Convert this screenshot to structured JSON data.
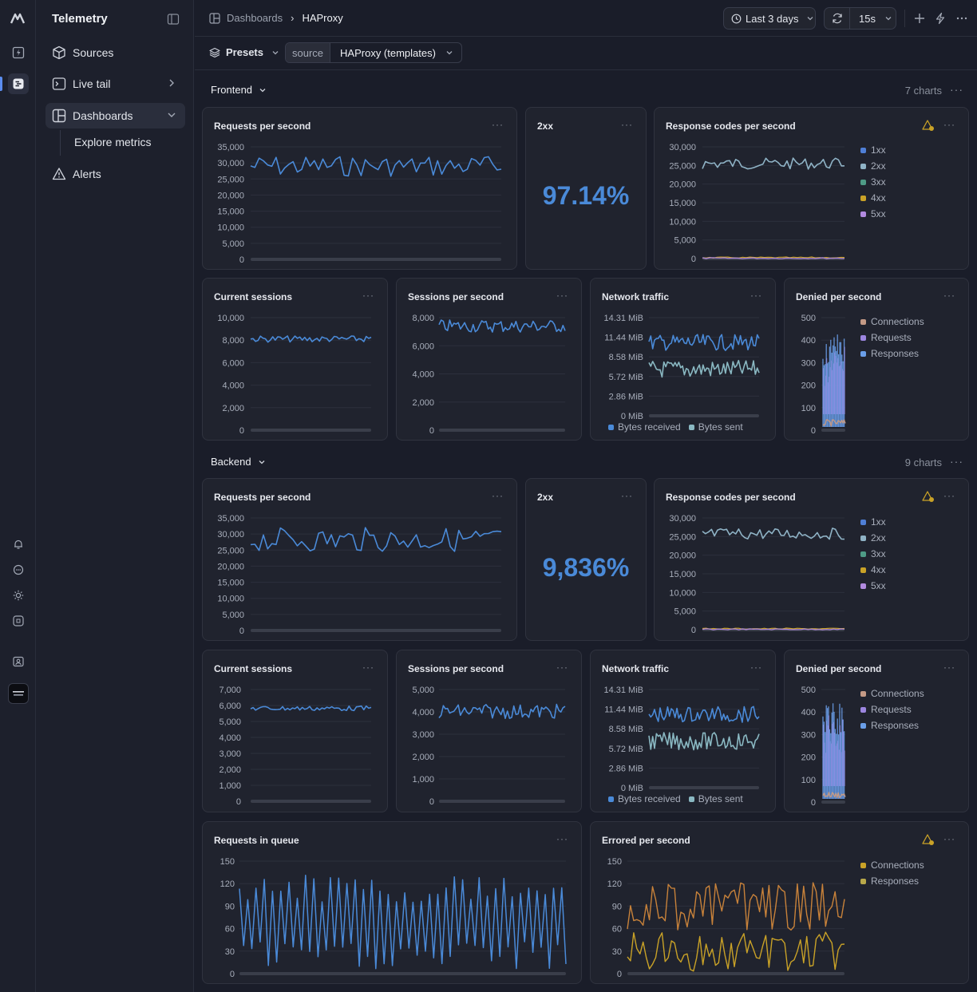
{
  "app": {
    "title": "Telemetry"
  },
  "sidebar": {
    "items": [
      {
        "label": "Sources"
      },
      {
        "label": "Live tail"
      },
      {
        "label": "Dashboards"
      },
      {
        "label": "Alerts"
      }
    ],
    "subitem": "Explore metrics"
  },
  "header": {
    "crumb_root": "Dashboards",
    "crumb_current": "HAProxy",
    "range": "Last 3 days",
    "refresh": "15s"
  },
  "filters": {
    "presets": "Presets",
    "source_key": "source",
    "source_value": "HAProxy (templates)"
  },
  "frontend": {
    "title": "Frontend",
    "count": "7 charts",
    "requests": {
      "title": "Requests per second",
      "yticks": [
        "35,000",
        "30,000",
        "25,000",
        "20,000",
        "15,000",
        "10,000",
        "5,000",
        "0"
      ]
    },
    "twoxx": {
      "title": "2xx",
      "value": "97.14%"
    },
    "codes": {
      "title": "Response codes per second",
      "yticks": [
        "30,000",
        "25,000",
        "20,000",
        "15,000",
        "10,000",
        "5,000",
        "0"
      ],
      "legend": [
        "1xx",
        "2xx",
        "3xx",
        "4xx",
        "5xx"
      ]
    },
    "sessions": {
      "title": "Current sessions",
      "yticks": [
        "10,000",
        "8,000",
        "6,000",
        "4,000",
        "2,000",
        "0"
      ]
    },
    "sps": {
      "title": "Sessions per second",
      "yticks": [
        "8,000",
        "6,000",
        "4,000",
        "2,000",
        "0"
      ]
    },
    "network": {
      "title": "Network traffic",
      "yticks": [
        "14.31 MiB",
        "11.44 MiB",
        "8.58 MiB",
        "5.72 MiB",
        "2.86 MiB",
        "0 MiB"
      ],
      "legend": [
        "Bytes received",
        "Bytes sent"
      ]
    },
    "denied": {
      "title": "Denied per second",
      "yticks": [
        "500",
        "400",
        "300",
        "200",
        "100",
        "0"
      ],
      "legend": [
        "Connections",
        "Requests",
        "Responses"
      ]
    }
  },
  "backend": {
    "title": "Backend",
    "count": "9 charts",
    "requests": {
      "title": "Requests per second",
      "yticks": [
        "35,000",
        "30,000",
        "25,000",
        "20,000",
        "15,000",
        "10,000",
        "5,000",
        "0"
      ]
    },
    "twoxx": {
      "title": "2xx",
      "value": "9,836%"
    },
    "codes": {
      "title": "Response codes per second",
      "yticks": [
        "30,000",
        "25,000",
        "20,000",
        "15,000",
        "10,000",
        "5,000",
        "0"
      ],
      "legend": [
        "1xx",
        "2xx",
        "3xx",
        "4xx",
        "5xx"
      ]
    },
    "sessions": {
      "title": "Current sessions",
      "yticks": [
        "7,000",
        "6,000",
        "5,000",
        "4,000",
        "3,000",
        "2,000",
        "1,000",
        "0"
      ]
    },
    "sps": {
      "title": "Sessions per second",
      "yticks": [
        "5,000",
        "4,000",
        "3,000",
        "2,000",
        "1,000",
        "0"
      ]
    },
    "network": {
      "title": "Network traffic",
      "yticks": [
        "14.31 MiB",
        "11.44 MiB",
        "8.58 MiB",
        "5.72 MiB",
        "2.86 MiB",
        "0 MiB"
      ],
      "legend": [
        "Bytes received",
        "Bytes sent"
      ]
    },
    "denied": {
      "title": "Denied per second",
      "yticks": [
        "500",
        "400",
        "300",
        "200",
        "100",
        "0"
      ],
      "legend": [
        "Connections",
        "Requests",
        "Responses"
      ]
    },
    "queue": {
      "title": "Requests in queue",
      "yticks": [
        "150",
        "120",
        "90",
        "60",
        "30",
        "0"
      ]
    },
    "errored": {
      "title": "Errored per second",
      "yticks": [
        "150",
        "120",
        "90",
        "60",
        "30",
        "0"
      ],
      "legend": [
        "Connections",
        "Responses"
      ]
    }
  },
  "colors": {
    "blue": "#4a8ad8",
    "teal": "#8ab8c2",
    "c1xx": "#4f7fd6",
    "c2xx": "#8fb3c6",
    "c3xx": "#4e9b86",
    "c4xx": "#c9a227",
    "c5xx": "#b28be0",
    "conn": "#c49a86",
    "req": "#9c86e0",
    "resp": "#6a9ee8",
    "econn": "#c9a227",
    "eresp": "#b8a84a"
  }
}
